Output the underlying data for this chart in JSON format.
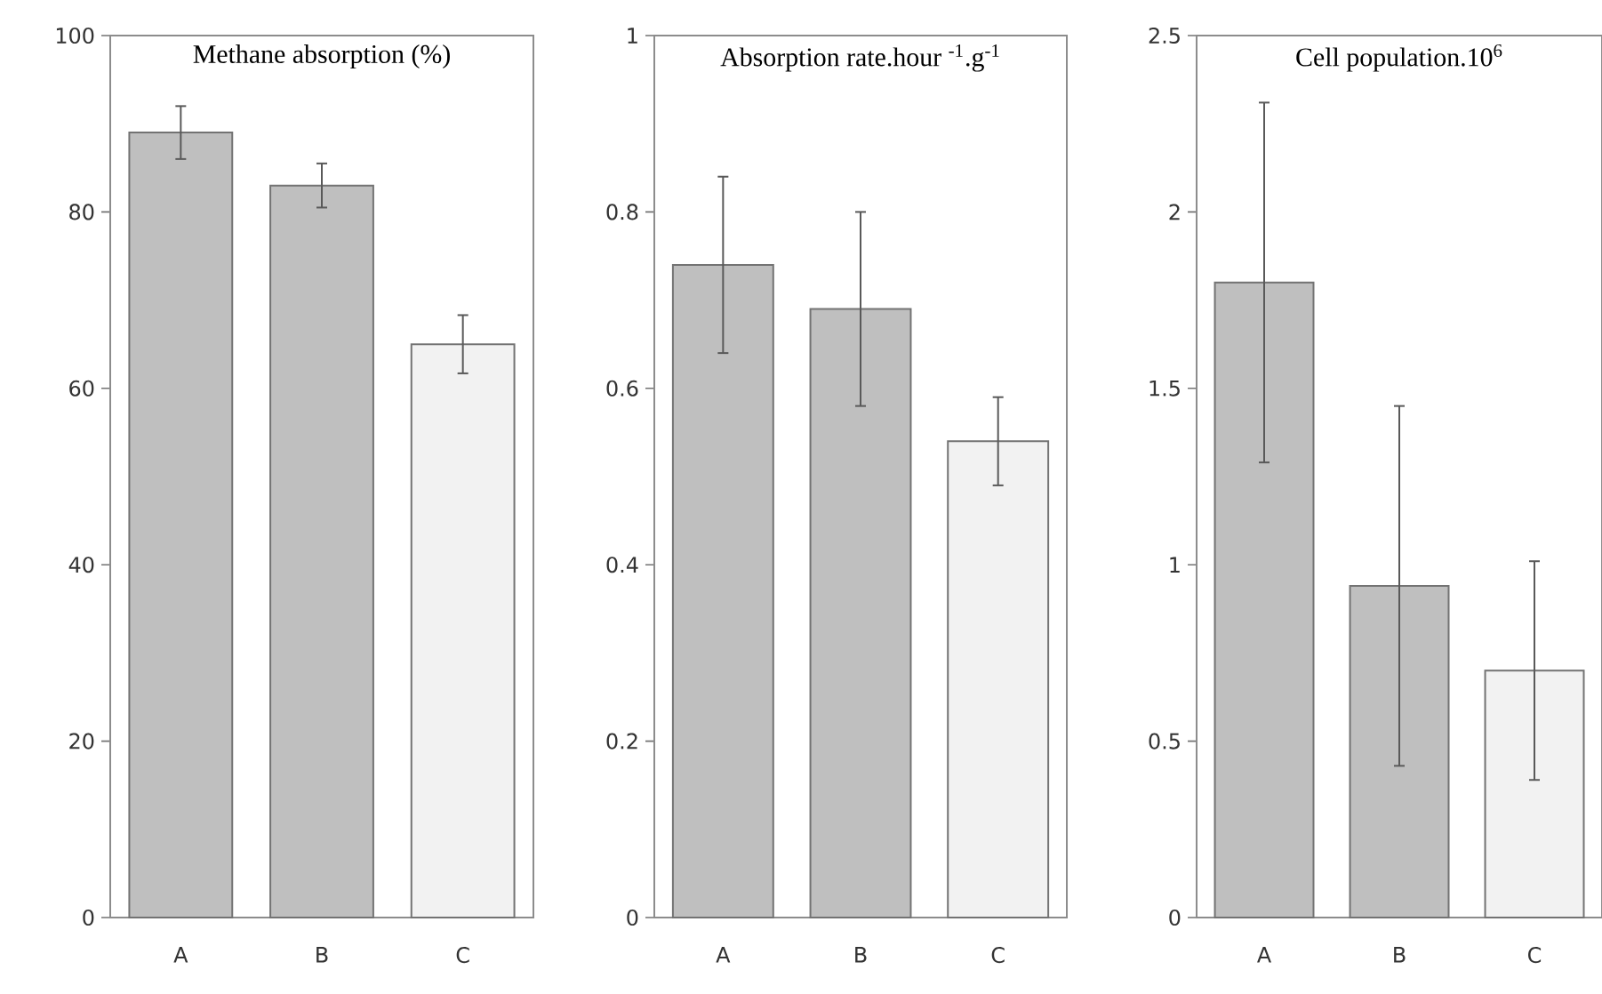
{
  "chart_data": [
    {
      "type": "bar",
      "title": "Methane absorption (%)",
      "categories": [
        "A",
        "B",
        "C"
      ],
      "values": [
        89,
        83,
        65
      ],
      "errors": [
        3,
        2.5,
        3.3
      ],
      "colors": [
        "#bfbfbf",
        "#bfbfbf",
        "#f2f2f2"
      ],
      "ylim": [
        0,
        100
      ],
      "yticks": [
        0,
        20,
        40,
        60,
        80,
        100
      ]
    },
    {
      "type": "bar",
      "title": "Absorption rate.hour $^{-1}$.g$^{-1}$",
      "categories": [
        "A",
        "B",
        "C"
      ],
      "values": [
        0.74,
        0.69,
        0.54
      ],
      "errors": [
        0.1,
        0.11,
        0.05
      ],
      "colors": [
        "#bfbfbf",
        "#bfbfbf",
        "#f2f2f2"
      ],
      "ylim": [
        0,
        1
      ],
      "yticks": [
        0,
        0.2,
        0.4,
        0.6,
        0.8,
        1
      ]
    },
    {
      "type": "bar",
      "title": "Cell population.10$^{6}$",
      "categories": [
        "A",
        "B",
        "C"
      ],
      "values": [
        1.8,
        0.94,
        0.7
      ],
      "errors": [
        0.51,
        0.51,
        0.31
      ],
      "colors": [
        "#bfbfbf",
        "#bfbfbf",
        "#f2f2f2"
      ],
      "ylim": [
        0,
        2.5
      ],
      "yticks": [
        0,
        0.5,
        1,
        1.5,
        2,
        2.5
      ]
    }
  ]
}
